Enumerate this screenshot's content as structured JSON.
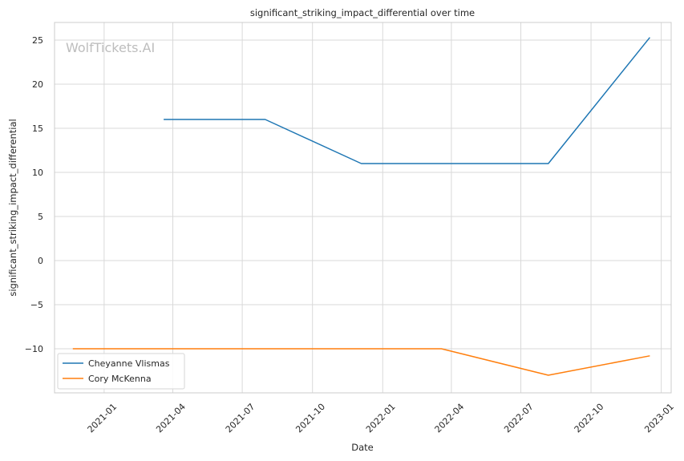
{
  "chart_data": {
    "type": "line",
    "title": "significant_striking_impact_differential over time",
    "xlabel": "Date",
    "ylabel": "significant_striking_impact_differential",
    "watermark": "WolfTickets.AI",
    "x_ticks": [
      "2021-01",
      "2021-04",
      "2021-07",
      "2021-10",
      "2022-01",
      "2022-04",
      "2022-07",
      "2022-10",
      "2023-01"
    ],
    "y_ticks": [
      25,
      20,
      15,
      10,
      5,
      0,
      -5,
      -10
    ],
    "y_tick_labels": [
      "25",
      "20",
      "15",
      "10",
      "5",
      "0",
      "−5",
      "−10"
    ],
    "xlim": [
      "2020-10-28",
      "2023-01-14"
    ],
    "ylim": [
      -15,
      27
    ],
    "grid": true,
    "legend_position": "lower-left",
    "series": [
      {
        "name": "Cheyanne Vlismas",
        "color": "#1f77b4",
        "x": [
          "2021-03-20",
          "2021-07-31",
          "2021-12-04",
          "2022-08-06",
          "2022-12-17"
        ],
        "y": [
          16,
          16,
          11,
          11,
          25.3
        ]
      },
      {
        "name": "Cory McKenna",
        "color": "#ff7f0e",
        "x": [
          "2020-11-21",
          "2022-03-19",
          "2022-08-06",
          "2022-12-17"
        ],
        "y": [
          -10,
          -10,
          -13,
          -10.8
        ]
      }
    ]
  }
}
